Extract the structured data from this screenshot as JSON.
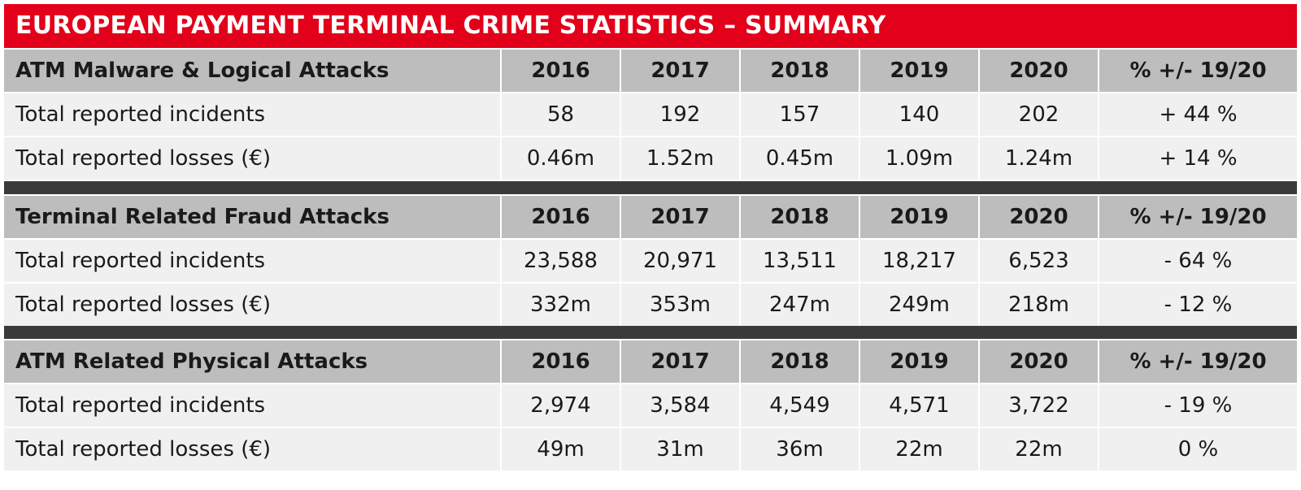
{
  "title": "EUROPEAN PAYMENT TERMINAL CRIME STATISTICS – SUMMARY",
  "colors": {
    "title_bar": "#e2001a",
    "header_row": "#bdbdbd",
    "data_row": "#f0f0f0",
    "divider": "#3a3a3a"
  },
  "chart_data": {
    "type": "table",
    "columns": [
      "2016",
      "2017",
      "2018",
      "2019",
      "2020",
      "% +/-  19/20"
    ],
    "sections": [
      {
        "name": "ATM Malware & Logical Attacks",
        "rows": [
          {
            "label": "Total reported incidents",
            "values": [
              "58",
              "192",
              "157",
              "140",
              "202",
              "+ 44 %"
            ]
          },
          {
            "label": "Total reported losses (€)",
            "values": [
              "0.46m",
              "1.52m",
              "0.45m",
              "1.09m",
              "1.24m",
              "+ 14 %"
            ]
          }
        ]
      },
      {
        "name": "Terminal Related Fraud Attacks",
        "rows": [
          {
            "label": "Total reported incidents",
            "values": [
              "23,588",
              "20,971",
              "13,511",
              "18,217",
              "6,523",
              "- 64 %"
            ]
          },
          {
            "label": "Total reported losses (€)",
            "values": [
              "332m",
              "353m",
              "247m",
              "249m",
              "218m",
              "- 12 %"
            ]
          }
        ]
      },
      {
        "name": "ATM Related Physical Attacks",
        "rows": [
          {
            "label": "Total reported incidents",
            "values": [
              "2,974",
              "3,584",
              "4,549",
              "4,571",
              "3,722",
              "- 19 %"
            ]
          },
          {
            "label": "Total reported losses (€)",
            "values": [
              "49m",
              "31m",
              "36m",
              "22m",
              "22m",
              "0 %"
            ]
          }
        ]
      }
    ]
  }
}
